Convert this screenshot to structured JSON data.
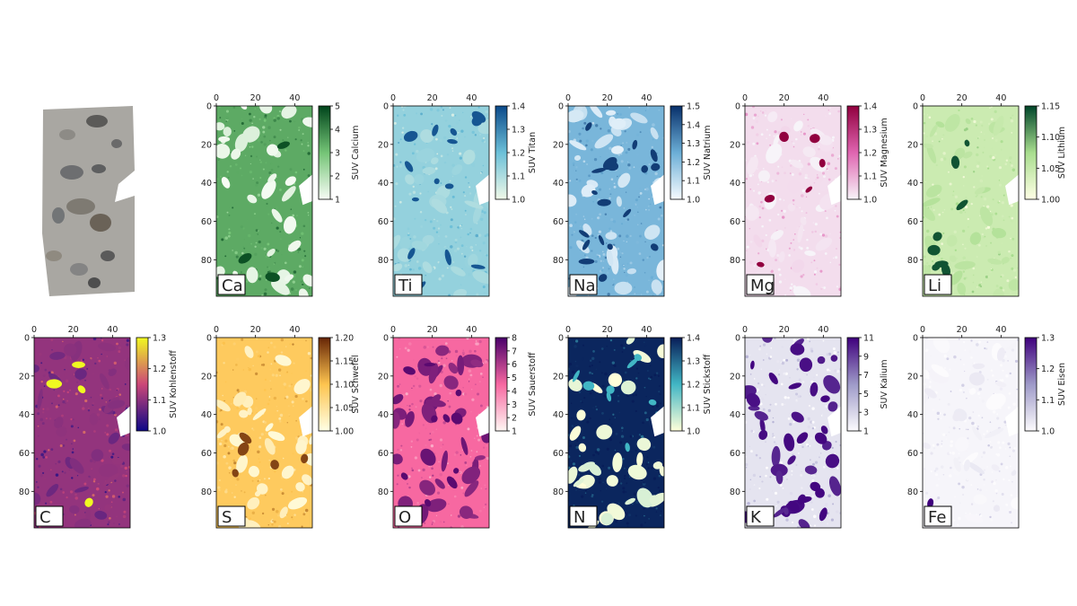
{
  "chart_data": [
    {
      "type": "heatmap",
      "label": "Ca",
      "xlim": [
        0,
        49
      ],
      "ylim": [
        0,
        99
      ],
      "invert_y": true,
      "xticks": [
        0,
        20,
        40
      ],
      "yticks": [
        0,
        20,
        40,
        60,
        80
      ],
      "colorbar": {
        "label": "SUV Calcium",
        "lim": [
          1,
          5
        ],
        "ticks": [
          1,
          2,
          3,
          4,
          5
        ],
        "colors": [
          "#f7fcf5",
          "#74c476",
          "#00441b"
        ]
      }
    },
    {
      "type": "heatmap",
      "label": "Ti",
      "xlim": [
        0,
        49
      ],
      "ylim": [
        0,
        99
      ],
      "invert_y": true,
      "xticks": [
        0,
        20,
        40
      ],
      "yticks": [
        0,
        20,
        40,
        60,
        80
      ],
      "colorbar": {
        "label": "SUV Titan",
        "lim": [
          1.0,
          1.4
        ],
        "ticks": [
          {
            "value": 1.0,
            "label": "1.0"
          },
          1.1,
          1.2,
          1.3,
          1.4
        ],
        "colors": [
          "#f0f9e8",
          "#6cc0d8",
          "#0c4a8a"
        ]
      }
    },
    {
      "type": "heatmap",
      "label": "Na",
      "xlim": [
        0,
        49
      ],
      "ylim": [
        0,
        99
      ],
      "invert_y": true,
      "xticks": [
        0,
        20,
        40
      ],
      "yticks": [
        0,
        20,
        40,
        60,
        80
      ],
      "colorbar": {
        "label": "SUV Natrium",
        "lim": [
          1.0,
          1.5
        ],
        "ticks": [
          {
            "value": 1.0,
            "label": "1.0"
          },
          1.1,
          1.2,
          1.3,
          1.4,
          1.5
        ],
        "colors": [
          "#f7fbff",
          "#6baed6",
          "#08306b"
        ]
      }
    },
    {
      "type": "heatmap",
      "label": "Mg",
      "xlim": [
        0,
        49
      ],
      "ylim": [
        0,
        99
      ],
      "invert_y": true,
      "xticks": [
        0,
        20,
        40
      ],
      "yticks": [
        0,
        20,
        40,
        60,
        80
      ],
      "colorbar": {
        "label": "SUV Magnesium",
        "lim": [
          1.0,
          1.4
        ],
        "ticks": [
          {
            "value": 1.0,
            "label": "1.0"
          },
          1.1,
          1.2,
          1.3,
          1.4
        ],
        "colors": [
          "#f7f4f9",
          "#df65b0",
          "#91003f"
        ]
      }
    },
    {
      "type": "heatmap",
      "label": "Li",
      "xlim": [
        0,
        49
      ],
      "ylim": [
        0,
        99
      ],
      "invert_y": true,
      "xticks": [
        0,
        20,
        40
      ],
      "yticks": [
        0,
        20,
        40,
        60,
        80
      ],
      "colorbar": {
        "label": "SUV Lithium",
        "lim": [
          1.0,
          1.15
        ],
        "ticks": [
          {
            "value": 1.0,
            "label": "1.00"
          },
          1.05,
          {
            "value": 1.1,
            "label": "1.10"
          },
          1.15
        ],
        "colors": [
          "#ffffe5",
          "#a8dd8e",
          "#004529"
        ]
      }
    },
    {
      "type": "heatmap",
      "label": "C",
      "xlim": [
        0,
        49
      ],
      "ylim": [
        0,
        99
      ],
      "invert_y": true,
      "xticks": [
        0,
        20,
        40
      ],
      "yticks": [
        0,
        20,
        40,
        60,
        80
      ],
      "colorbar": {
        "label": "SUV Kohlenstoff",
        "lim": [
          1.0,
          1.3
        ],
        "ticks": [
          {
            "value": 1.0,
            "label": "1.0"
          },
          1.1,
          1.2,
          1.3
        ],
        "colors": [
          "#0d0887",
          "#cc4778",
          "#f0f921"
        ]
      }
    },
    {
      "type": "heatmap",
      "label": "S",
      "xlim": [
        0,
        49
      ],
      "ylim": [
        0,
        99
      ],
      "invert_y": true,
      "xticks": [
        0,
        20,
        40
      ],
      "yticks": [
        0,
        20,
        40,
        60,
        80
      ],
      "colorbar": {
        "label": "SUV Schwefel",
        "lim": [
          1.0,
          1.2
        ],
        "ticks": [
          {
            "value": 1.0,
            "label": "1.00"
          },
          1.05,
          {
            "value": 1.1,
            "label": "1.10"
          },
          1.15,
          {
            "value": 1.2,
            "label": "1.20"
          }
        ],
        "colors": [
          "#ffffe5",
          "#fec44f",
          "#662506"
        ]
      }
    },
    {
      "type": "heatmap",
      "label": "O",
      "xlim": [
        0,
        49
      ],
      "ylim": [
        0,
        99
      ],
      "invert_y": true,
      "xticks": [
        0,
        20,
        40
      ],
      "yticks": [
        0,
        20,
        40,
        60,
        80
      ],
      "colorbar": {
        "label": "SUV Sauerstoff",
        "lim": [
          1,
          8
        ],
        "ticks": [
          1,
          2,
          3,
          4,
          5,
          6,
          7,
          8
        ],
        "colors": [
          "#fff7f3",
          "#f768a1",
          "#49006a"
        ]
      }
    },
    {
      "type": "heatmap",
      "label": "N",
      "xlim": [
        0,
        49
      ],
      "ylim": [
        0,
        99
      ],
      "invert_y": true,
      "xticks": [
        0,
        20,
        40
      ],
      "yticks": [
        0,
        20,
        40,
        60,
        80
      ],
      "colorbar": {
        "label": "SUV Stickstoff",
        "lim": [
          1.0,
          1.4
        ],
        "ticks": [
          {
            "value": 1.0,
            "label": "1.0"
          },
          1.1,
          1.2,
          1.3,
          1.4
        ],
        "colors": [
          "#ffffd9",
          "#41b6c4",
          "#081d58"
        ]
      }
    },
    {
      "type": "heatmap",
      "label": "K",
      "xlim": [
        0,
        49
      ],
      "ylim": [
        0,
        99
      ],
      "invert_y": true,
      "xticks": [
        0,
        20,
        40
      ],
      "yticks": [
        0,
        20,
        40,
        60,
        80
      ],
      "colorbar": {
        "label": "SUV Kalium",
        "lim": [
          1,
          11
        ],
        "ticks": [
          1,
          3,
          5,
          7,
          9,
          11
        ],
        "colors": [
          "#fcfbfd",
          "#9e9ac8",
          "#3f007d"
        ]
      }
    },
    {
      "type": "heatmap",
      "label": "Fe",
      "xlim": [
        0,
        49
      ],
      "ylim": [
        0,
        99
      ],
      "invert_y": true,
      "xticks": [
        0,
        20,
        40
      ],
      "yticks": [
        0,
        20,
        40,
        60,
        80
      ],
      "colorbar": {
        "label": "SUV Eisen",
        "lim": [
          1.0,
          1.3
        ],
        "ticks": [
          {
            "value": 1.0,
            "label": "1.0"
          },
          1.1,
          1.2,
          1.3
        ],
        "colors": [
          "#fcfbfd",
          "#9e9ac8",
          "#3f007d"
        ]
      }
    }
  ]
}
